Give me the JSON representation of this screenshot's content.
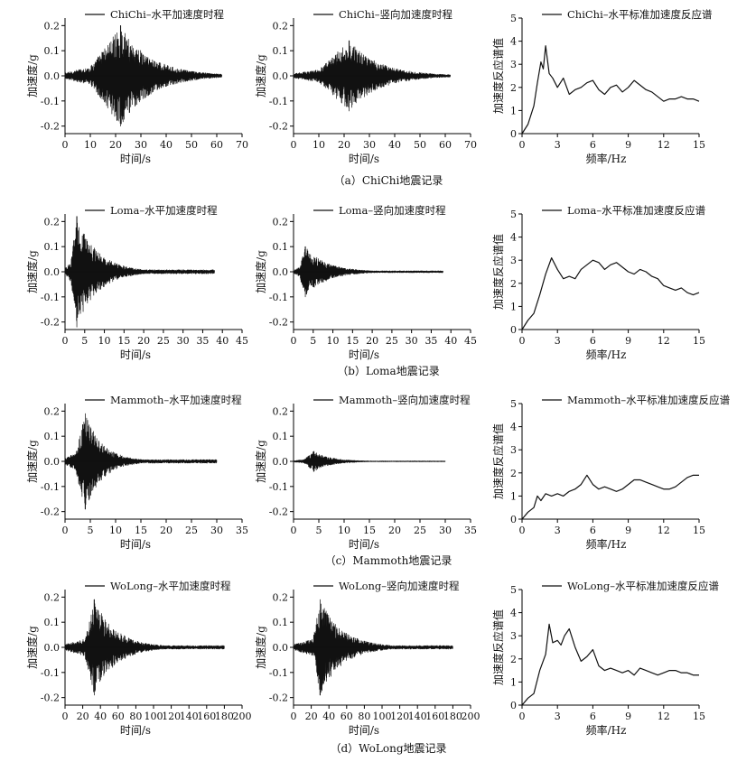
{
  "captions": [
    "（a）ChiChi地震记录",
    "（b）Loma地震记录",
    "（c）Mammoth地震记录",
    "（d）WoLong地震记录"
  ],
  "chart_data": [
    {
      "type": "line",
      "row": 0,
      "col": 0,
      "series": [
        {
          "name": "ChiChi–水平加速度时程",
          "envelope": {
            "pga": 0.2,
            "peak_time": 22,
            "rise": [
              10,
              22
            ],
            "decay": [
              22,
              60
            ],
            "end": 62
          }
        }
      ],
      "xlabel": "时间/s",
      "ylabel": "加速度/g",
      "xlim": [
        0,
        70
      ],
      "ylim": [
        -0.23,
        0.23
      ],
      "xticks": [
        "0",
        "10",
        "20",
        "30",
        "40",
        "50",
        "60",
        "70"
      ],
      "yticks": [
        "-0.2",
        "-0.1",
        "0.0",
        "0.1",
        "0.2"
      ],
      "ytick_values": [
        -0.2,
        -0.1,
        0,
        0.1,
        0.2
      ]
    },
    {
      "type": "line",
      "row": 0,
      "col": 1,
      "series": [
        {
          "name": "ChiChi–竖向加速度时程",
          "envelope": {
            "pga": 0.14,
            "peak_time": 22,
            "rise": [
              10,
              22
            ],
            "decay": [
              22,
              60
            ],
            "end": 62
          }
        }
      ],
      "xlabel": "时间/s",
      "ylabel": "加速度/g",
      "xlim": [
        0,
        70
      ],
      "ylim": [
        -0.23,
        0.23
      ],
      "xticks": [
        "0",
        "10",
        "20",
        "30",
        "40",
        "50",
        "60",
        "70"
      ],
      "yticks": [
        "-0.2",
        "-0.1",
        "0.0",
        "0.1",
        "0.2"
      ],
      "ytick_values": [
        -0.2,
        -0.1,
        0,
        0.1,
        0.2
      ]
    },
    {
      "type": "line",
      "row": 0,
      "col": 2,
      "series": [
        {
          "name": "ChiChi–水平标准加速度反应谱",
          "x": [
            0,
            0.5,
            1,
            1.3,
            1.6,
            1.8,
            2,
            2.3,
            2.6,
            3,
            3.5,
            4,
            4.5,
            5,
            5.5,
            6,
            6.5,
            7,
            7.5,
            8,
            8.5,
            9,
            9.5,
            10,
            10.5,
            11,
            11.5,
            12,
            12.5,
            13,
            13.5,
            14,
            14.5,
            15
          ],
          "y": [
            0,
            0.4,
            1.2,
            2.2,
            3.1,
            2.8,
            3.8,
            2.6,
            2.4,
            2.0,
            2.4,
            1.7,
            1.9,
            2.0,
            2.2,
            2.3,
            1.9,
            1.7,
            2.0,
            2.1,
            1.8,
            2.0,
            2.3,
            2.1,
            1.9,
            1.8,
            1.6,
            1.4,
            1.5,
            1.5,
            1.6,
            1.5,
            1.5,
            1.4
          ]
        }
      ],
      "xlabel": "频率/Hz",
      "ylabel": "加速度反应谱值",
      "xlim": [
        0,
        15
      ],
      "ylim": [
        0,
        5
      ],
      "xticks": [
        "0",
        "3",
        "6",
        "9",
        "12",
        "15"
      ],
      "xtick_values": [
        0,
        3,
        6,
        9,
        12,
        15
      ],
      "yticks": [
        "0",
        "1",
        "2",
        "3",
        "4",
        "5"
      ],
      "ytick_values": [
        0,
        1,
        2,
        3,
        4,
        5
      ]
    },
    {
      "type": "line",
      "row": 1,
      "col": 0,
      "series": [
        {
          "name": "Loma–水平加速度时程",
          "envelope": {
            "pga": 0.22,
            "peak_time": 3,
            "rise": [
              1.5,
              3
            ],
            "decay": [
              3,
              20
            ],
            "end": 38
          }
        }
      ],
      "xlabel": "时间/s",
      "ylabel": "加速度/g",
      "xlim": [
        0,
        45
      ],
      "ylim": [
        -0.23,
        0.23
      ],
      "xticks": [
        "0",
        "5",
        "10",
        "15",
        "20",
        "25",
        "30",
        "35",
        "40",
        "45"
      ],
      "yticks": [
        "-0.2",
        "-0.1",
        "0.0",
        "0.1",
        "0.2"
      ],
      "ytick_values": [
        -0.2,
        -0.1,
        0,
        0.1,
        0.2
      ]
    },
    {
      "type": "line",
      "row": 1,
      "col": 1,
      "series": [
        {
          "name": "Loma–竖向加速度时程",
          "envelope": {
            "pga": 0.1,
            "peak_time": 3,
            "rise": [
              1.5,
              3
            ],
            "decay": [
              3,
              20
            ],
            "end": 38
          }
        }
      ],
      "xlabel": "时间/s",
      "ylabel": "加速度/g",
      "xlim": [
        0,
        45
      ],
      "ylim": [
        -0.23,
        0.23
      ],
      "xticks": [
        "0",
        "5",
        "10",
        "15",
        "20",
        "25",
        "30",
        "35",
        "40",
        "45"
      ],
      "yticks": [
        "-0.2",
        "-0.1",
        "0.0",
        "0.1",
        "0.2"
      ],
      "ytick_values": [
        -0.2,
        -0.1,
        0,
        0.1,
        0.2
      ]
    },
    {
      "type": "line",
      "row": 1,
      "col": 2,
      "series": [
        {
          "name": "Loma–水平标准加速度反应谱",
          "x": [
            0,
            0.5,
            1,
            1.5,
            2,
            2.5,
            3,
            3.5,
            4,
            4.5,
            5,
            5.5,
            6,
            6.5,
            7,
            7.5,
            8,
            8.5,
            9,
            9.5,
            10,
            10.5,
            11,
            11.5,
            12,
            12.5,
            13,
            13.5,
            14,
            14.5,
            15
          ],
          "y": [
            0,
            0.4,
            0.7,
            1.5,
            2.4,
            3.1,
            2.6,
            2.2,
            2.3,
            2.2,
            2.6,
            2.8,
            3.0,
            2.9,
            2.6,
            2.8,
            2.9,
            2.7,
            2.5,
            2.4,
            2.6,
            2.5,
            2.3,
            2.2,
            1.9,
            1.8,
            1.7,
            1.8,
            1.6,
            1.5,
            1.6
          ]
        }
      ],
      "xlabel": "频率/Hz",
      "ylabel": "加速度反应谱值",
      "xlim": [
        0,
        15
      ],
      "ylim": [
        0,
        5
      ],
      "xticks": [
        "0",
        "3",
        "6",
        "9",
        "12",
        "15"
      ],
      "xtick_values": [
        0,
        3,
        6,
        9,
        12,
        15
      ],
      "yticks": [
        "0",
        "1",
        "2",
        "3",
        "4",
        "5"
      ],
      "ytick_values": [
        0,
        1,
        2,
        3,
        4,
        5
      ]
    },
    {
      "type": "line",
      "row": 2,
      "col": 0,
      "series": [
        {
          "name": "Mammoth–水平加速度时程",
          "envelope": {
            "pga": 0.19,
            "peak_time": 4,
            "rise": [
              2,
              4
            ],
            "decay": [
              4,
              15
            ],
            "end": 30
          }
        }
      ],
      "xlabel": "时间/s",
      "ylabel": "加速度/g",
      "xlim": [
        0,
        35
      ],
      "ylim": [
        -0.23,
        0.23
      ],
      "xticks": [
        "0",
        "5",
        "10",
        "15",
        "20",
        "25",
        "30",
        "35"
      ],
      "yticks": [
        "-0.2",
        "-0.1",
        "0.0",
        "0.1",
        "0.2"
      ],
      "ytick_values": [
        -0.2,
        -0.1,
        0,
        0.1,
        0.2
      ]
    },
    {
      "type": "line",
      "row": 2,
      "col": 1,
      "series": [
        {
          "name": "Mammoth–竖向加速度时程",
          "envelope": {
            "pga": 0.04,
            "peak_time": 4,
            "rise": [
              2,
              4
            ],
            "decay": [
              4,
              15
            ],
            "end": 30
          }
        }
      ],
      "xlabel": "时间/s",
      "ylabel": "加速度/g",
      "xlim": [
        0,
        35
      ],
      "ylim": [
        -0.23,
        0.23
      ],
      "xticks": [
        "0",
        "5",
        "10",
        "15",
        "20",
        "25",
        "30",
        "35"
      ],
      "yticks": [
        "-0.2",
        "-0.1",
        "0.0",
        "0.1",
        "0.2"
      ],
      "ytick_values": [
        -0.2,
        -0.1,
        0,
        0.1,
        0.2
      ]
    },
    {
      "type": "line",
      "row": 2,
      "col": 2,
      "series": [
        {
          "name": "Mammoth–水平标准加速度反应谱",
          "x": [
            0,
            0.5,
            1,
            1.3,
            1.6,
            2,
            2.5,
            3,
            3.5,
            4,
            4.5,
            5,
            5.5,
            6,
            6.5,
            7,
            7.5,
            8,
            8.5,
            9,
            9.5,
            10,
            10.5,
            11,
            11.5,
            12,
            12.5,
            13,
            13.5,
            14,
            14.5,
            15
          ],
          "y": [
            0,
            0.3,
            0.5,
            1.0,
            0.8,
            1.1,
            1.0,
            1.1,
            1.0,
            1.2,
            1.3,
            1.5,
            1.9,
            1.5,
            1.3,
            1.4,
            1.3,
            1.2,
            1.3,
            1.5,
            1.7,
            1.7,
            1.6,
            1.5,
            1.4,
            1.3,
            1.3,
            1.4,
            1.6,
            1.8,
            1.9,
            1.9
          ]
        }
      ],
      "xlabel": "频率/Hz",
      "ylabel": "加速度反应谱值",
      "xlim": [
        0,
        15
      ],
      "ylim": [
        0,
        5
      ],
      "xticks": [
        "0",
        "3",
        "6",
        "9",
        "12",
        "15"
      ],
      "xtick_values": [
        0,
        3,
        6,
        9,
        12,
        15
      ],
      "yticks": [
        "0",
        "1",
        "2",
        "3",
        "4",
        "5"
      ],
      "ytick_values": [
        0,
        1,
        2,
        3,
        4,
        5
      ]
    },
    {
      "type": "line",
      "row": 3,
      "col": 0,
      "series": [
        {
          "name": "WoLong–水平加速度时程",
          "envelope": {
            "pga": 0.19,
            "peak_time": 33,
            "rise": [
              22,
              33
            ],
            "decay": [
              33,
              110
            ],
            "end": 180
          }
        }
      ],
      "xlabel": "时间/s",
      "ylabel": "加速度/g",
      "xlim": [
        0,
        200
      ],
      "ylim": [
        -0.23,
        0.23
      ],
      "xticks": [
        "0",
        "20",
        "40",
        "60",
        "80",
        "100",
        "120",
        "140",
        "160",
        "180",
        "200"
      ],
      "yticks": [
        "-0.2",
        "-0.1",
        "0.0",
        "0.1",
        "0.2"
      ],
      "ytick_values": [
        -0.2,
        -0.1,
        0,
        0.1,
        0.2
      ]
    },
    {
      "type": "line",
      "row": 3,
      "col": 1,
      "series": [
        {
          "name": "WoLong–竖向加速度时程",
          "envelope": {
            "pga": 0.19,
            "peak_time": 30,
            "rise": [
              22,
              30
            ],
            "decay": [
              30,
              110
            ],
            "end": 180
          }
        }
      ],
      "xlabel": "时间/s",
      "ylabel": "加速度/g",
      "xlim": [
        0,
        200
      ],
      "ylim": [
        -0.23,
        0.23
      ],
      "xticks": [
        "0",
        "20",
        "40",
        "60",
        "80",
        "100",
        "120",
        "140",
        "160",
        "180",
        "200"
      ],
      "yticks": [
        "-0.2",
        "-0.1",
        "0.0",
        "0.1",
        "0.2"
      ],
      "ytick_values": [
        -0.2,
        -0.1,
        0,
        0.1,
        0.2
      ]
    },
    {
      "type": "line",
      "row": 3,
      "col": 2,
      "series": [
        {
          "name": "WoLong–水平标准加速度反应谱",
          "x": [
            0,
            0.5,
            1,
            1.5,
            2,
            2.3,
            2.6,
            3,
            3.3,
            3.6,
            4,
            4.5,
            5,
            5.5,
            6,
            6.5,
            7,
            7.5,
            8,
            8.5,
            9,
            9.5,
            10,
            10.5,
            11,
            11.5,
            12,
            12.5,
            13,
            13.5,
            14,
            14.5,
            15
          ],
          "y": [
            0,
            0.3,
            0.5,
            1.5,
            2.2,
            3.5,
            2.7,
            2.8,
            2.6,
            3.0,
            3.3,
            2.5,
            1.9,
            2.1,
            2.4,
            1.7,
            1.5,
            1.6,
            1.5,
            1.4,
            1.5,
            1.3,
            1.6,
            1.5,
            1.4,
            1.3,
            1.4,
            1.5,
            1.5,
            1.4,
            1.4,
            1.3,
            1.3
          ]
        }
      ],
      "xlabel": "频率/Hz",
      "ylabel": "加速度反应谱值",
      "xlim": [
        0,
        15
      ],
      "ylim": [
        0,
        5
      ],
      "xticks": [
        "0",
        "3",
        "6",
        "9",
        "12",
        "15"
      ],
      "xtick_values": [
        0,
        3,
        6,
        9,
        12,
        15
      ],
      "yticks": [
        "0",
        "1",
        "2",
        "3",
        "4",
        "5"
      ],
      "ytick_values": [
        0,
        1,
        2,
        3,
        4,
        5
      ]
    }
  ]
}
